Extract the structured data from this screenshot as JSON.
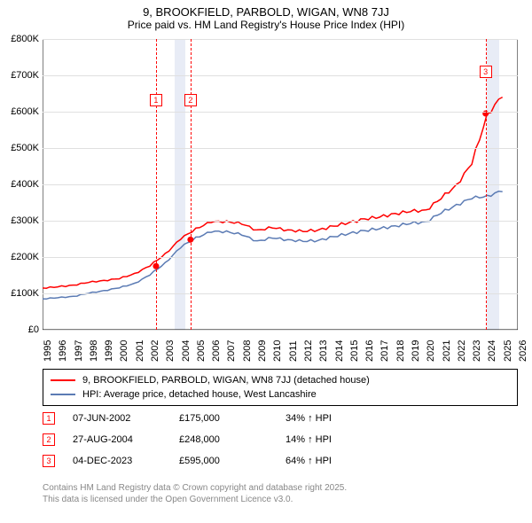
{
  "title": "9, BROOKFIELD, PARBOLD, WIGAN, WN8 7JJ",
  "subtitle": "Price paid vs. HM Land Registry's House Price Index (HPI)",
  "chart": {
    "type": "line",
    "background_color": "#ffffff",
    "grid_color": "#e0e0e0",
    "x_years": [
      1995,
      1996,
      1997,
      1998,
      1999,
      2000,
      2001,
      2002,
      2003,
      2004,
      2005,
      2006,
      2007,
      2008,
      2009,
      2010,
      2011,
      2012,
      2013,
      2014,
      2015,
      2016,
      2017,
      2018,
      2019,
      2020,
      2021,
      2022,
      2023,
      2024,
      2025,
      2026
    ],
    "xlim": [
      1995,
      2026
    ],
    "ylim": [
      0,
      800000
    ],
    "ytick_step": 100000,
    "ytick_labels": [
      "£0",
      "£100K",
      "£200K",
      "£300K",
      "£400K",
      "£500K",
      "£600K",
      "£700K",
      "£800K"
    ],
    "series": [
      {
        "name": "9, BROOKFIELD, PARBOLD, WIGAN, WN8 7JJ (detached house)",
        "color": "#ff0000",
        "line_width": 1.5,
        "y_by_year": [
          115000,
          118000,
          123000,
          130000,
          136000,
          140000,
          155000,
          175000,
          210000,
          248000,
          280000,
          295000,
          300000,
          290000,
          275000,
          280000,
          275000,
          270000,
          275000,
          285000,
          295000,
          305000,
          310000,
          320000,
          325000,
          330000,
          360000,
          400000,
          455000,
          595000,
          640000
        ]
      },
      {
        "name": "HPI: Average price, detached house, West Lancashire",
        "color": "#5b7bb4",
        "line_width": 1.5,
        "y_by_year": [
          85000,
          88000,
          92000,
          100000,
          108000,
          115000,
          128000,
          150000,
          185000,
          225000,
          255000,
          268000,
          272000,
          260000,
          245000,
          252000,
          248000,
          243000,
          246000,
          256000,
          265000,
          273000,
          278000,
          286000,
          292000,
          298000,
          320000,
          345000,
          360000,
          370000,
          380000
        ]
      }
    ],
    "vbands": [
      {
        "from": 2003.6,
        "to": 2004.3,
        "color": "#e8ecf6"
      },
      {
        "from": 2024.0,
        "to": 2024.8,
        "color": "#e8ecf6"
      }
    ],
    "markers": [
      {
        "n": 1,
        "year": 2002.4,
        "y": 175000,
        "color": "#ff0000"
      },
      {
        "n": 2,
        "year": 2004.65,
        "y": 248000,
        "color": "#ff0000"
      },
      {
        "n": 3,
        "year": 2023.9,
        "y": 595000,
        "color": "#ff0000"
      }
    ]
  },
  "legend": {
    "rows": [
      {
        "color": "#ff0000",
        "label": "9, BROOKFIELD, PARBOLD, WIGAN, WN8 7JJ (detached house)"
      },
      {
        "color": "#5b7bb4",
        "label": "HPI: Average price, detached house, West Lancashire"
      }
    ]
  },
  "sales": [
    {
      "n": 1,
      "color": "#ff0000",
      "date": "07-JUN-2002",
      "price": "£175,000",
      "delta": "34% ↑ HPI"
    },
    {
      "n": 2,
      "color": "#ff0000",
      "date": "27-AUG-2004",
      "price": "£248,000",
      "delta": "14% ↑ HPI"
    },
    {
      "n": 3,
      "color": "#ff0000",
      "date": "04-DEC-2023",
      "price": "£595,000",
      "delta": "64% ↑ HPI"
    }
  ],
  "footnote_line1": "Contains HM Land Registry data © Crown copyright and database right 2025.",
  "footnote_line2": "This data is licensed under the Open Government Licence v3.0."
}
